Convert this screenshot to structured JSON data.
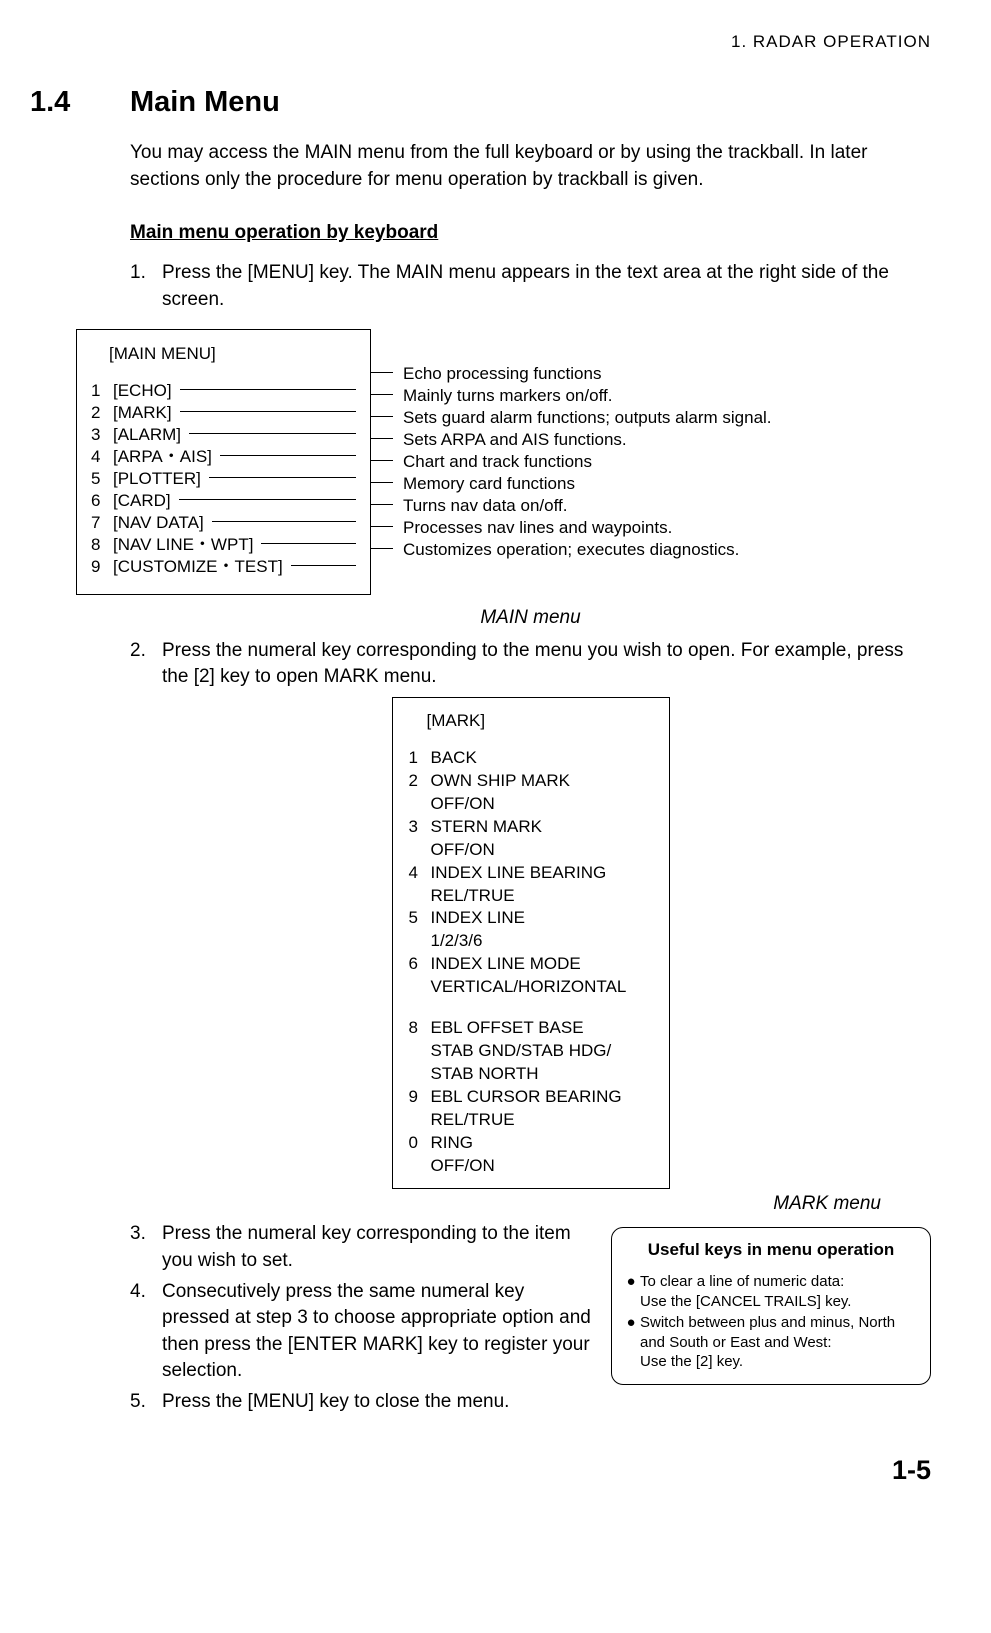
{
  "header": "1.  RADAR  OPERATION",
  "section": {
    "num": "1.4",
    "name": "Main Menu"
  },
  "intro": "You may access the MAIN menu from the full keyboard or by using the trackball. In later sections only the procedure for menu operation by trackball is given.",
  "subheading": "Main menu operation by keyboard",
  "steps_first": [
    {
      "n": "1.",
      "t": "Press the [MENU] key. The MAIN menu appears in the text area at the right side of the screen."
    }
  ],
  "main_menu": {
    "title": "[MAIN MENU]",
    "items": [
      {
        "n": "1",
        "label": "[ECHO]",
        "desc": "Echo processing functions"
      },
      {
        "n": "2",
        "label": "[MARK]",
        "desc": "Mainly turns markers on/off."
      },
      {
        "n": "3",
        "label": "[ALARM]",
        "desc": "Sets guard alarm functions; outputs alarm signal."
      },
      {
        "n": "4",
        "label": "[ARPA・AIS]",
        "desc": "Sets ARPA and AIS functions."
      },
      {
        "n": "5",
        "label": "[PLOTTER]",
        "desc": "Chart and track functions"
      },
      {
        "n": "6",
        "label": "[CARD]",
        "desc": "Memory card functions"
      },
      {
        "n": "7",
        "label": "[NAV DATA]",
        "desc": "Turns nav data on/off."
      },
      {
        "n": "8",
        "label": "[NAV LINE・WPT]",
        "desc": "Processes nav lines and waypoints."
      },
      {
        "n": "9",
        "label": "[CUSTOMIZE・TEST]",
        "desc": "Customizes operation; executes diagnostics."
      }
    ],
    "caption": "MAIN menu"
  },
  "steps_mid": [
    {
      "n": "2.",
      "t": "Press the numeral key corresponding to the menu you wish to open. For example, press the [2] key to open MARK menu."
    }
  ],
  "mark_menu": {
    "title": "[MARK]",
    "items1": [
      {
        "n": "1",
        "t": "BACK"
      },
      {
        "n": "2",
        "t": "OWN SHIP MARK\nOFF/ON"
      },
      {
        "n": "3",
        "t": "STERN MARK\nOFF/ON"
      },
      {
        "n": "4",
        "t": "INDEX LINE BEARING\nREL/TRUE"
      },
      {
        "n": "5",
        "t": "INDEX LINE\n1/2/3/6"
      },
      {
        "n": "6",
        "t": "INDEX LINE MODE\nVERTICAL/HORIZONTAL"
      }
    ],
    "items2": [
      {
        "n": "8",
        "t": "EBL OFFSET BASE\nSTAB GND/STAB HDG/\nSTAB NORTH"
      },
      {
        "n": "9",
        "t": "EBL CURSOR BEARING\nREL/TRUE"
      },
      {
        "n": "0",
        "t": "RING\nOFF/ON"
      }
    ],
    "caption": "MARK menu"
  },
  "steps_last": [
    {
      "n": "3.",
      "t": "Press the numeral key corresponding to the item you wish to set."
    },
    {
      "n": "4.",
      "t": "Consecutively press the same numeral key pressed at step 3 to choose appropriate option and then press the [ENTER MARK] key to register your selection."
    },
    {
      "n": "5.",
      "t": "Press the [MENU] key to close the menu."
    }
  ],
  "tips": {
    "title": "Useful keys in menu operation",
    "items": [
      "To clear a line of numeric data:\nUse the [CANCEL TRAILS] key.",
      "Switch between plus and minus, North and South or East and West:\nUse the [2] key."
    ]
  },
  "page_number": "1-5"
}
